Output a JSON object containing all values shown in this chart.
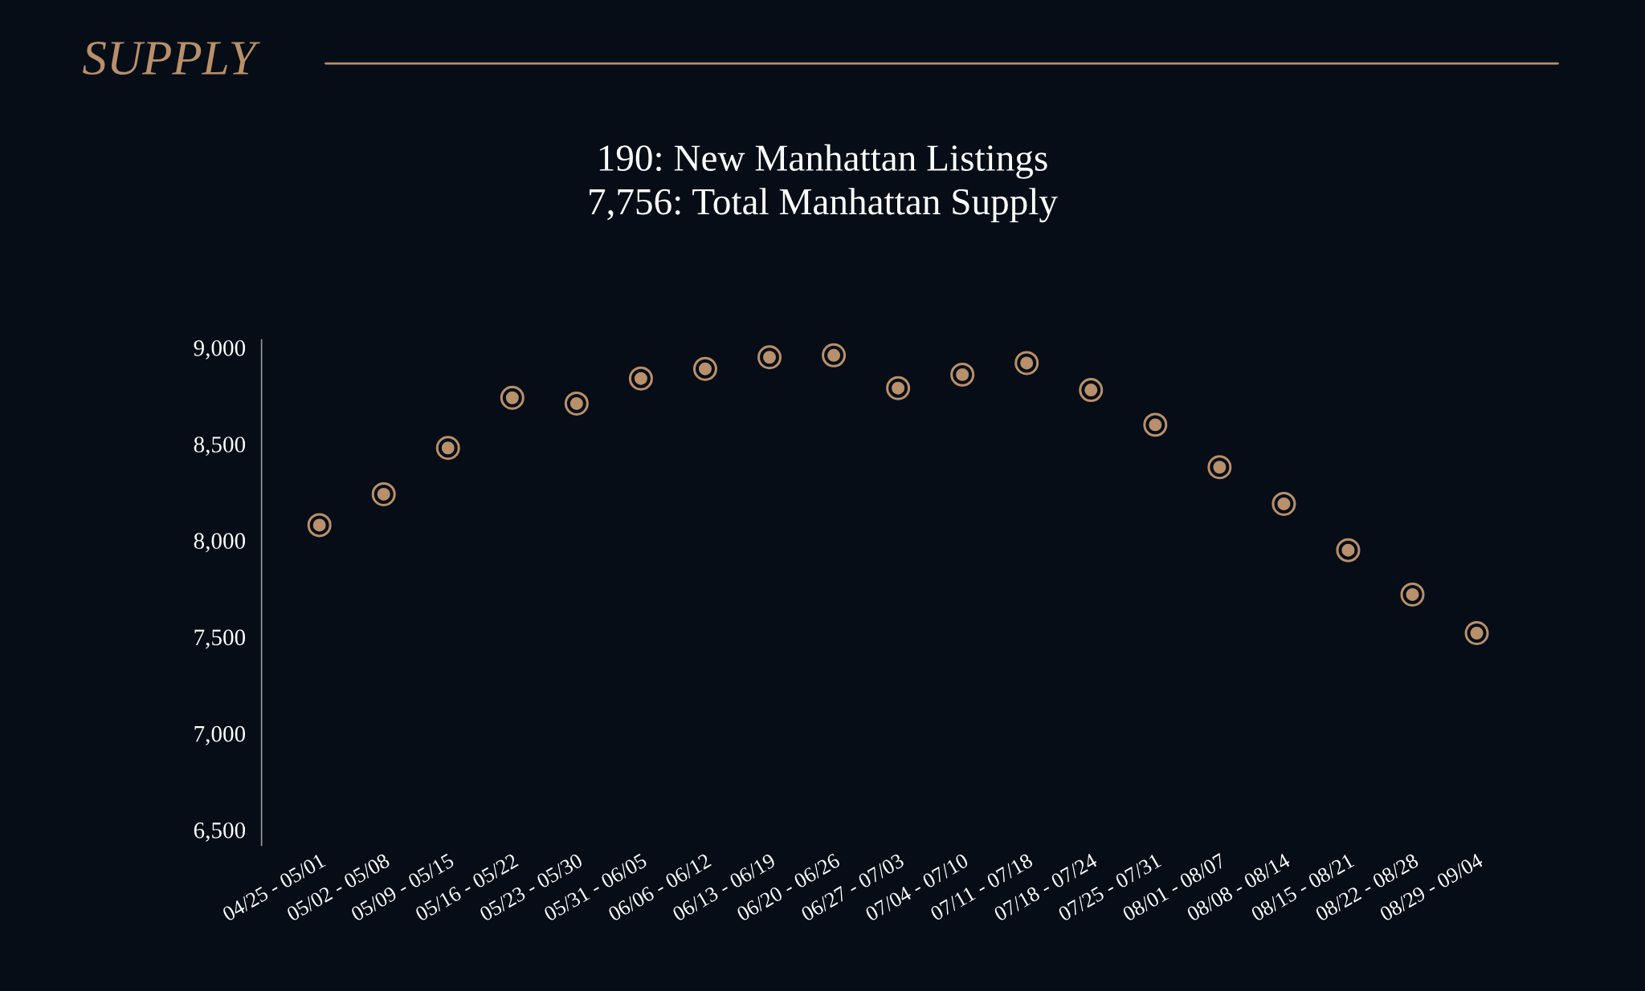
{
  "chart_data": {
    "type": "scatter",
    "title": "SUPPLY",
    "subtitle": "190: New Manhattan Listings\n7,756: Total Manhattan Supply",
    "categories": [
      "04/25 - 05/01",
      "05/02 - 05/08",
      "05/09 - 05/15",
      "05/16 - 05/22",
      "05/23 - 05/30",
      "05/31 - 06/05",
      "06/06 - 06/12",
      "06/13 - 06/19",
      "06/20 - 06/26",
      "06/27 - 07/03",
      "07/04 - 07/10",
      "07/11 - 07/18",
      "07/18 - 07/24",
      "07/25 - 07/31",
      "08/01 - 08/07",
      "08/08 - 08/14",
      "08/15 - 08/21",
      "08/22 - 08/28",
      "08/29 - 09/04"
    ],
    "values": [
      8080,
      8240,
      8480,
      8740,
      8710,
      8840,
      8890,
      8950,
      8960,
      8790,
      8860,
      8920,
      8780,
      8600,
      8380,
      8190,
      7950,
      7720,
      7520
    ],
    "color": "#b8906b",
    "marker": "circle",
    "ylim": [
      6420,
      9040
    ],
    "yticks": [
      {
        "value": 6500,
        "label": "6,500"
      },
      {
        "value": 7000,
        "label": "7,000"
      },
      {
        "value": 7500,
        "label": "7,500"
      },
      {
        "value": 8000,
        "label": "8,000"
      },
      {
        "value": 8500,
        "label": "8,500"
      },
      {
        "value": 9000,
        "label": "9,000"
      }
    ],
    "grid": false,
    "legend": false
  }
}
